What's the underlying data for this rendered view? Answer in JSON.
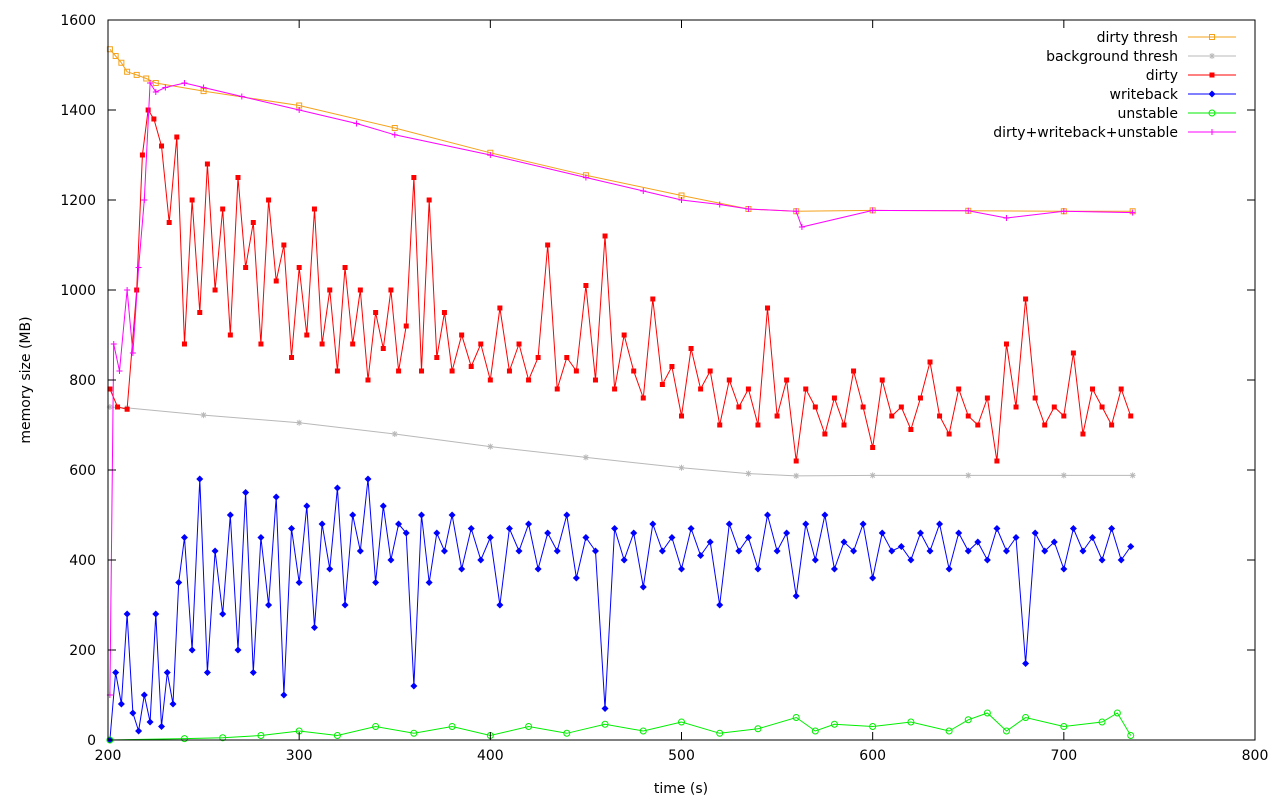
{
  "chart_data": {
    "type": "line",
    "xlabel": "time (s)",
    "ylabel": "memory size (MB)",
    "xlim": [
      200,
      800
    ],
    "ylim": [
      0,
      1600
    ],
    "x_ticks": [
      200,
      300,
      400,
      500,
      600,
      700,
      800
    ],
    "y_ticks": [
      0,
      200,
      400,
      600,
      800,
      1000,
      1200,
      1400,
      1600
    ],
    "grid": false,
    "legend_position": "top-right",
    "series": [
      {
        "name": "dirty thresh",
        "color": "#f4a21b",
        "marker": "square-open",
        "x": [
          201,
          204,
          207,
          210,
          215,
          220,
          225,
          250,
          300,
          350,
          400,
          450,
          500,
          535,
          560,
          600,
          650,
          700,
          736
        ],
        "y": [
          1535,
          1520,
          1505,
          1485,
          1478,
          1470,
          1460,
          1442,
          1410,
          1360,
          1305,
          1255,
          1210,
          1180,
          1175,
          1177,
          1176,
          1175,
          1175
        ]
      },
      {
        "name": "background thresh",
        "color": "#b8b8b8",
        "marker": "star",
        "x": [
          201,
          210,
          250,
          300,
          350,
          400,
          450,
          500,
          535,
          560,
          600,
          650,
          700,
          736
        ],
        "y": [
          740,
          738,
          722,
          705,
          680,
          652,
          628,
          605,
          592,
          587,
          588,
          588,
          588,
          588
        ]
      },
      {
        "name": "dirty",
        "color": "#ff0000",
        "marker": "square",
        "x": [
          201,
          205,
          210,
          215,
          218,
          221,
          224,
          228,
          232,
          236,
          240,
          244,
          248,
          252,
          256,
          260,
          264,
          268,
          272,
          276,
          280,
          284,
          288,
          292,
          296,
          300,
          304,
          308,
          312,
          316,
          320,
          324,
          328,
          332,
          336,
          340,
          344,
          348,
          352,
          356,
          360,
          364,
          368,
          372,
          376,
          380,
          385,
          390,
          395,
          400,
          405,
          410,
          415,
          420,
          425,
          430,
          435,
          440,
          445,
          450,
          455,
          460,
          465,
          470,
          475,
          480,
          485,
          490,
          495,
          500,
          505,
          510,
          515,
          520,
          525,
          530,
          535,
          540,
          545,
          550,
          555,
          560,
          565,
          570,
          575,
          580,
          585,
          590,
          595,
          600,
          605,
          610,
          615,
          620,
          625,
          630,
          635,
          640,
          645,
          650,
          655,
          660,
          665,
          670,
          675,
          680,
          685,
          690,
          695,
          700,
          705,
          710,
          715,
          720,
          725,
          730,
          735
        ],
        "y": [
          780,
          740,
          735,
          1000,
          1300,
          1400,
          1380,
          1320,
          1150,
          1340,
          880,
          1200,
          950,
          1280,
          1000,
          1180,
          900,
          1250,
          1050,
          1150,
          880,
          1200,
          1020,
          1100,
          850,
          1050,
          900,
          1180,
          880,
          1000,
          820,
          1050,
          880,
          1000,
          800,
          950,
          870,
          1000,
          820,
          920,
          1250,
          820,
          1200,
          850,
          950,
          820,
          900,
          830,
          880,
          800,
          960,
          820,
          880,
          800,
          850,
          1100,
          780,
          850,
          820,
          1010,
          800,
          1120,
          780,
          900,
          820,
          760,
          980,
          790,
          830,
          720,
          870,
          780,
          820,
          700,
          800,
          740,
          780,
          700,
          960,
          720,
          800,
          620,
          780,
          740,
          680,
          760,
          700,
          820,
          740,
          650,
          800,
          720,
          740,
          690,
          760,
          840,
          720,
          680,
          780,
          720,
          700,
          760,
          620,
          880,
          740,
          980,
          760,
          700,
          740,
          720,
          860,
          680,
          780,
          740,
          700,
          780,
          720
        ]
      },
      {
        "name": "writeback",
        "color": "#0000ff",
        "marker": "diamond",
        "x": [
          201,
          204,
          207,
          210,
          213,
          216,
          219,
          222,
          225,
          228,
          231,
          234,
          237,
          240,
          244,
          248,
          252,
          256,
          260,
          264,
          268,
          272,
          276,
          280,
          284,
          288,
          292,
          296,
          300,
          304,
          308,
          312,
          316,
          320,
          324,
          328,
          332,
          336,
          340,
          344,
          348,
          352,
          356,
          360,
          364,
          368,
          372,
          376,
          380,
          385,
          390,
          395,
          400,
          405,
          410,
          415,
          420,
          425,
          430,
          435,
          440,
          445,
          450,
          455,
          460,
          465,
          470,
          475,
          480,
          485,
          490,
          495,
          500,
          505,
          510,
          515,
          520,
          525,
          530,
          535,
          540,
          545,
          550,
          555,
          560,
          565,
          570,
          575,
          580,
          585,
          590,
          595,
          600,
          605,
          610,
          615,
          620,
          625,
          630,
          635,
          640,
          645,
          650,
          655,
          660,
          665,
          670,
          675,
          680,
          685,
          690,
          695,
          700,
          705,
          710,
          715,
          720,
          725,
          730,
          735
        ],
        "y": [
          0,
          150,
          80,
          280,
          60,
          20,
          100,
          40,
          280,
          30,
          150,
          80,
          350,
          450,
          200,
          580,
          150,
          420,
          280,
          500,
          200,
          550,
          150,
          450,
          300,
          540,
          100,
          470,
          350,
          520,
          250,
          480,
          380,
          560,
          300,
          500,
          420,
          580,
          350,
          520,
          400,
          480,
          460,
          120,
          500,
          350,
          460,
          420,
          500,
          380,
          470,
          400,
          450,
          300,
          470,
          420,
          480,
          380,
          460,
          420,
          500,
          360,
          450,
          420,
          70,
          470,
          400,
          460,
          340,
          480,
          420,
          450,
          380,
          470,
          410,
          440,
          300,
          480,
          420,
          450,
          380,
          500,
          420,
          460,
          320,
          480,
          400,
          500,
          380,
          440,
          420,
          480,
          360,
          460,
          420,
          430,
          400,
          460,
          420,
          480,
          380,
          460,
          420,
          440,
          400,
          470,
          420,
          450,
          170,
          460,
          420,
          440,
          380,
          470,
          420,
          450,
          400,
          470,
          400,
          430
        ]
      },
      {
        "name": "unstable",
        "color": "#00ee00",
        "marker": "circle-open",
        "x": [
          201,
          240,
          260,
          280,
          300,
          320,
          340,
          360,
          380,
          400,
          420,
          440,
          460,
          480,
          500,
          520,
          540,
          560,
          570,
          580,
          600,
          620,
          640,
          650,
          660,
          670,
          680,
          700,
          720,
          728,
          735
        ],
        "y": [
          0,
          3,
          5,
          10,
          20,
          10,
          30,
          15,
          30,
          10,
          30,
          15,
          35,
          20,
          40,
          15,
          25,
          50,
          20,
          35,
          30,
          40,
          20,
          45,
          60,
          20,
          50,
          30,
          40,
          60,
          10
        ]
      },
      {
        "name": "dirty+writeback+unstable",
        "color": "#ff00ff",
        "marker": "plus",
        "x": [
          201,
          203,
          206,
          210,
          213,
          216,
          219,
          222,
          225,
          230,
          240,
          250,
          270,
          300,
          330,
          350,
          400,
          450,
          480,
          500,
          520,
          535,
          560,
          563,
          600,
          650,
          670,
          700,
          736
        ],
        "y": [
          100,
          880,
          820,
          1000,
          860,
          1050,
          1200,
          1460,
          1440,
          1450,
          1460,
          1450,
          1430,
          1400,
          1370,
          1345,
          1300,
          1250,
          1220,
          1200,
          1190,
          1180,
          1175,
          1140,
          1177,
          1176,
          1160,
          1175,
          1172
        ]
      }
    ]
  }
}
